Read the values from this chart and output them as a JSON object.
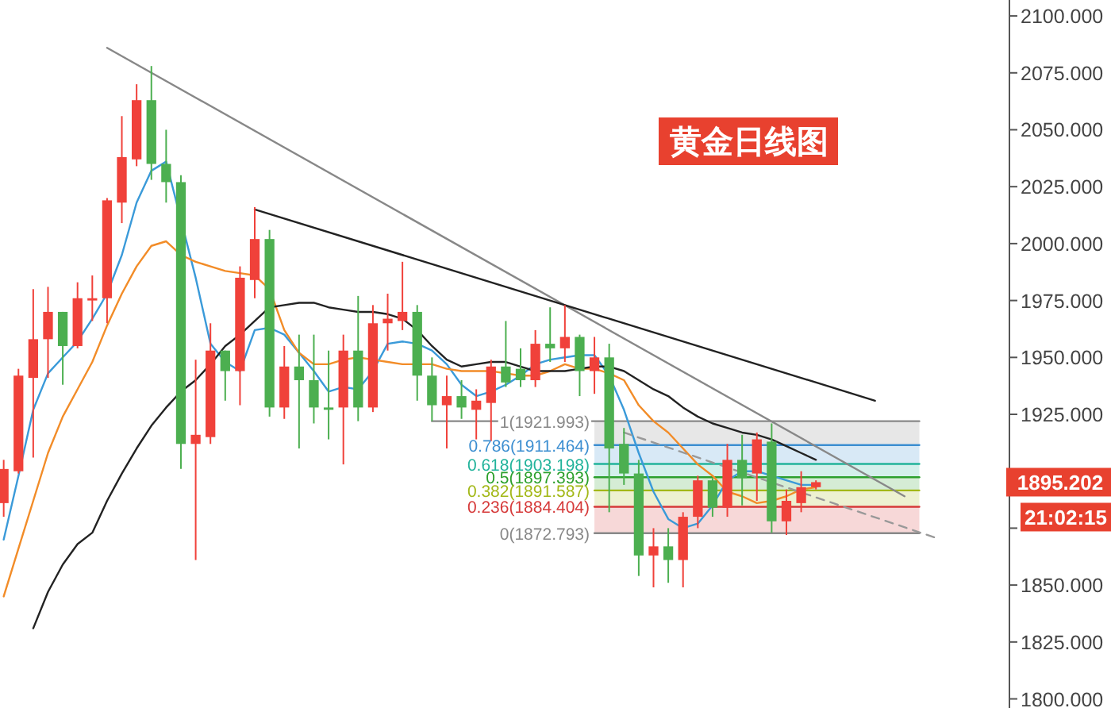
{
  "chart_data": {
    "type": "candlestick",
    "title": "黄金日线图",
    "categories": [
      null,
      null,
      null,
      null,
      null,
      null,
      null,
      null,
      null,
      null,
      null,
      null,
      null,
      null,
      null,
      null,
      null,
      null,
      null,
      null,
      null,
      null,
      null,
      null,
      null,
      null,
      null,
      null,
      null,
      null,
      null,
      null,
      null,
      null,
      null,
      null,
      null,
      null,
      null,
      null,
      null,
      null,
      null,
      null,
      null,
      null,
      null,
      null,
      null,
      null,
      null,
      null,
      null,
      null,
      null,
      null,
      null,
      null,
      null,
      null,
      null,
      null,
      null,
      null,
      null,
      null,
      null,
      null
    ],
    "ohlc": [
      [
        1886,
        1905,
        1880,
        1901
      ],
      [
        1900,
        1945,
        1899,
        1942
      ],
      [
        1941,
        1980,
        1906,
        1958
      ],
      [
        1958,
        1981,
        1941,
        1970
      ],
      [
        1970,
        1970,
        1938,
        1955
      ],
      [
        1955,
        1983,
        1954,
        1976
      ],
      [
        1975,
        1986,
        1966,
        1976
      ],
      [
        1976,
        2020,
        1965,
        2019
      ],
      [
        2018,
        2056,
        2009,
        2038
      ],
      [
        2037,
        2070,
        2034,
        2063
      ],
      [
        2063,
        2078,
        2028,
        2035
      ],
      [
        2035,
        2050,
        2018,
        2027
      ],
      [
        2027,
        2030,
        1901,
        1912
      ],
      [
        1912,
        1949,
        1861,
        1916
      ],
      [
        1915,
        1965,
        1912,
        1953
      ],
      [
        1953,
        1953,
        1931,
        1944
      ],
      [
        1944,
        1990,
        1929,
        1985
      ],
      [
        1984,
        2016,
        1976,
        2002
      ],
      [
        2002,
        2006,
        1924,
        1928
      ],
      [
        1928,
        1955,
        1923,
        1946
      ],
      [
        1946,
        1960,
        1910,
        1940
      ],
      [
        1940,
        1960,
        1921,
        1928
      ],
      [
        1928,
        1953,
        1914,
        1927
      ],
      [
        1928,
        1960,
        1903,
        1953
      ],
      [
        1953,
        1977,
        1922,
        1928
      ],
      [
        1928,
        1973,
        1926,
        1965
      ],
      [
        1965,
        1978,
        1953,
        1967
      ],
      [
        1966,
        1992,
        1962,
        1970
      ],
      [
        1970,
        1973,
        1931,
        1942
      ],
      [
        1942,
        1950,
        1922,
        1929
      ],
      [
        1929,
        1942,
        1910,
        1933
      ],
      [
        1933,
        1940,
        1923,
        1928
      ],
      [
        1927,
        1936,
        1914,
        1931
      ],
      [
        1930,
        1949,
        1912,
        1946
      ],
      [
        1946,
        1966,
        1937,
        1939
      ],
      [
        1945,
        1954,
        1937,
        1940
      ],
      [
        1940,
        1962,
        1937,
        1956
      ],
      [
        1956,
        1972,
        1948,
        1954
      ],
      [
        1954,
        1973,
        1948,
        1959
      ],
      [
        1959,
        1960,
        1933,
        1944
      ],
      [
        1944,
        1959,
        1934,
        1950
      ],
      [
        1950,
        1956,
        1882,
        1910
      ],
      [
        1912,
        1919,
        1894,
        1899
      ],
      [
        1899,
        1905,
        1854,
        1863
      ],
      [
        1863,
        1875,
        1849,
        1867
      ],
      [
        1867,
        1875,
        1851,
        1861
      ],
      [
        1861,
        1882,
        1849,
        1880
      ],
      [
        1880,
        1898,
        1875,
        1896
      ],
      [
        1896,
        1897,
        1880,
        1884
      ],
      [
        1884,
        1912,
        1880,
        1905
      ],
      [
        1905,
        1916,
        1885,
        1897
      ],
      [
        1899,
        1917,
        1887,
        1914
      ],
      [
        1913,
        1921,
        1873,
        1878
      ],
      [
        1878,
        1892,
        1872,
        1887
      ],
      [
        1886,
        1900,
        1882,
        1893
      ],
      [
        1893,
        1896,
        1892,
        1895.202
      ],
      null,
      null,
      null,
      null,
      null,
      null,
      null,
      null,
      null,
      null,
      null,
      null
    ],
    "colors": [
      "#f0413a",
      "#f0413a",
      "#f0413a",
      "#f0413a",
      "#4caf50",
      "#f0413a",
      "#f0413a",
      "#f0413a",
      "#f0413a",
      "#f0413a",
      "#4caf50",
      "#4caf50",
      "#4caf50",
      "#f0413a",
      "#f0413a",
      "#4caf50",
      "#f0413a",
      "#f0413a",
      "#4caf50",
      "#f0413a",
      "#4caf50",
      "#4caf50",
      "#4caf50",
      "#f0413a",
      "#4caf50",
      "#f0413a",
      "#f0413a",
      "#f0413a",
      "#4caf50",
      "#4caf50",
      "#f0413a",
      "#4caf50",
      "#f0413a",
      "#f0413a",
      "#4caf50",
      "#4caf50",
      "#f0413a",
      "#4caf50",
      "#f0413a",
      "#4caf50",
      "#f0413a",
      "#4caf50",
      "#4caf50",
      "#4caf50",
      "#f0413a",
      "#4caf50",
      "#f0413a",
      "#f0413a",
      "#4caf50",
      "#f0413a",
      "#4caf50",
      "#f0413a",
      "#4caf50",
      "#f0413a",
      "#f0413a",
      "#f0413a",
      null,
      null,
      null,
      null,
      null,
      null,
      null,
      null,
      null,
      null,
      null,
      null
    ],
    "ylim": [
      1796,
      2107
    ],
    "yticks": [
      {
        "value": 1800,
        "label": "1800.000"
      },
      {
        "value": 1825,
        "label": "1825.000"
      },
      {
        "value": 1850,
        "label": "1850.000"
      },
      {
        "value": 1875,
        "label": null
      },
      {
        "value": 1900,
        "label": null
      },
      {
        "value": 1925,
        "label": "1925.000"
      },
      {
        "value": 1950,
        "label": "1950.000"
      },
      {
        "value": 1975,
        "label": "1975.000"
      },
      {
        "value": 2000,
        "label": "2000.000"
      },
      {
        "value": 2025,
        "label": "2025.000"
      },
      {
        "value": 2050,
        "label": "2050.000"
      },
      {
        "value": 2075,
        "label": "2075.000"
      },
      {
        "value": 2100,
        "label": "2100.000"
      }
    ],
    "annotations": [
      "1895.202",
      "21:02:15"
    ],
    "bands": [
      {
        "axis": "y",
        "from": 1911.464,
        "to": 1921.993,
        "color": "#888888"
      },
      {
        "axis": "y",
        "from": 1903.198,
        "to": 1911.464,
        "color": "#3d8fd1"
      },
      {
        "axis": "y",
        "from": 1897.393,
        "to": 1903.198,
        "color": "#22b39b"
      },
      {
        "axis": "y",
        "from": 1891.587,
        "to": 1897.393,
        "color": "#2ca02c"
      },
      {
        "axis": "y",
        "from": 1884.404,
        "to": 1891.587,
        "color": "#a3b818"
      },
      {
        "axis": "y",
        "from": 1872.793,
        "to": 1884.404,
        "color": "#d63a3a"
      }
    ],
    "series": [
      {
        "type": "line",
        "name": "1(1921.993)",
        "color": "#888888",
        "values": [
          null,
          null,
          null,
          null,
          null,
          null,
          null,
          null,
          null,
          null,
          null,
          null,
          null,
          null,
          null,
          null,
          null,
          null,
          null,
          null,
          null,
          null,
          null,
          null,
          null,
          null,
          null,
          null,
          null,
          1921.993,
          1921.993,
          1921.993,
          1921.993,
          1921.993,
          1921.993,
          1921.993,
          1921.993,
          1921.993,
          1921.993,
          1921.993,
          1921.993,
          1921.993,
          1921.993,
          1921.993,
          1921.993,
          1921.993,
          1921.993,
          1921.993,
          1921.993,
          1921.993,
          1921.993,
          1921.993,
          1921.993,
          1921.993,
          1921.993,
          1921.993,
          1921.993,
          1921.993,
          1921.993,
          1921.993,
          1921.993,
          1921.993,
          1921.993,
          null,
          null,
          null,
          null,
          null
        ]
      },
      {
        "type": "line",
        "name": "0.786(1911.464)",
        "color": "#3d8fd1",
        "values": [
          null,
          null,
          null,
          null,
          null,
          null,
          null,
          null,
          null,
          null,
          null,
          null,
          null,
          null,
          null,
          null,
          null,
          null,
          null,
          null,
          null,
          null,
          null,
          null,
          null,
          null,
          null,
          null,
          null,
          null,
          null,
          null,
          null,
          null,
          null,
          null,
          null,
          null,
          null,
          null,
          1911.464,
          1911.464,
          1911.464,
          1911.464,
          1911.464,
          1911.464,
          1911.464,
          1911.464,
          1911.464,
          1911.464,
          1911.464,
          1911.464,
          1911.464,
          1911.464,
          1911.464,
          1911.464,
          1911.464,
          1911.464,
          1911.464,
          1911.464,
          1911.464,
          1911.464,
          1911.464,
          null,
          null,
          null,
          null,
          null
        ]
      },
      {
        "type": "line",
        "name": "0.618(1903.198)",
        "color": "#22b39b",
        "values": [
          null,
          null,
          null,
          null,
          null,
          null,
          null,
          null,
          null,
          null,
          null,
          null,
          null,
          null,
          null,
          null,
          null,
          null,
          null,
          null,
          null,
          null,
          null,
          null,
          null,
          null,
          null,
          null,
          null,
          null,
          null,
          null,
          null,
          null,
          null,
          null,
          null,
          null,
          null,
          null,
          1903.198,
          1903.198,
          1903.198,
          1903.198,
          1903.198,
          1903.198,
          1903.198,
          1903.198,
          1903.198,
          1903.198,
          1903.198,
          1903.198,
          1903.198,
          1903.198,
          1903.198,
          1903.198,
          1903.198,
          1903.198,
          1903.198,
          1903.198,
          1903.198,
          1903.198,
          1903.198,
          null,
          null,
          null,
          null,
          null
        ]
      },
      {
        "type": "line",
        "name": "0.5(1897.393)",
        "color": "#2ca02c",
        "values": [
          null,
          null,
          null,
          null,
          null,
          null,
          null,
          null,
          null,
          null,
          null,
          null,
          null,
          null,
          null,
          null,
          null,
          null,
          null,
          null,
          null,
          null,
          null,
          null,
          null,
          null,
          null,
          null,
          null,
          null,
          null,
          null,
          null,
          null,
          null,
          null,
          null,
          null,
          null,
          null,
          1897.393,
          1897.393,
          1897.393,
          1897.393,
          1897.393,
          1897.393,
          1897.393,
          1897.393,
          1897.393,
          1897.393,
          1897.393,
          1897.393,
          1897.393,
          1897.393,
          1897.393,
          1897.393,
          1897.393,
          1897.393,
          1897.393,
          1897.393,
          1897.393,
          1897.393,
          1897.393,
          null,
          null,
          null,
          null,
          null
        ]
      },
      {
        "type": "line",
        "name": "0.382(1891.587)",
        "color": "#a3b818",
        "values": [
          null,
          null,
          null,
          null,
          null,
          null,
          null,
          null,
          null,
          null,
          null,
          null,
          null,
          null,
          null,
          null,
          null,
          null,
          null,
          null,
          null,
          null,
          null,
          null,
          null,
          null,
          null,
          null,
          null,
          null,
          null,
          null,
          null,
          null,
          null,
          null,
          null,
          null,
          null,
          null,
          1891.587,
          1891.587,
          1891.587,
          1891.587,
          1891.587,
          1891.587,
          1891.587,
          1891.587,
          1891.587,
          1891.587,
          1891.587,
          1891.587,
          1891.587,
          1891.587,
          1891.587,
          1891.587,
          1891.587,
          1891.587,
          1891.587,
          1891.587,
          1891.587,
          1891.587,
          1891.587,
          null,
          null,
          null,
          null,
          null
        ]
      },
      {
        "type": "line",
        "name": "0.236(1884.404)",
        "color": "#d63a3a",
        "values": [
          null,
          null,
          null,
          null,
          null,
          null,
          null,
          null,
          null,
          null,
          null,
          null,
          null,
          null,
          null,
          null,
          null,
          null,
          null,
          null,
          null,
          null,
          null,
          null,
          null,
          null,
          null,
          null,
          null,
          null,
          null,
          null,
          null,
          null,
          null,
          null,
          null,
          null,
          null,
          null,
          1884.404,
          1884.404,
          1884.404,
          1884.404,
          1884.404,
          1884.404,
          1884.404,
          1884.404,
          1884.404,
          1884.404,
          1884.404,
          1884.404,
          1884.404,
          1884.404,
          1884.404,
          1884.404,
          1884.404,
          1884.404,
          1884.404,
          1884.404,
          1884.404,
          1884.404,
          1884.404,
          null,
          null,
          null,
          null,
          null
        ]
      },
      {
        "type": "line",
        "name": "0(1872.793)",
        "color": "#888888",
        "values": [
          null,
          null,
          null,
          null,
          null,
          null,
          null,
          null,
          null,
          null,
          null,
          null,
          null,
          null,
          null,
          null,
          null,
          null,
          null,
          null,
          null,
          null,
          null,
          null,
          null,
          null,
          null,
          null,
          null,
          null,
          null,
          null,
          null,
          null,
          null,
          null,
          null,
          null,
          null,
          null,
          1872.793,
          1872.793,
          1872.793,
          1872.793,
          1872.793,
          1872.793,
          1872.793,
          1872.793,
          1872.793,
          1872.793,
          1872.793,
          1872.793,
          1872.793,
          1872.793,
          1872.793,
          1872.793,
          1872.793,
          1872.793,
          1872.793,
          1872.793,
          1872.793,
          1872.793,
          1872.793,
          null,
          null,
          null,
          null,
          null
        ]
      },
      {
        "type": "line",
        "color": "#3a9ad9",
        "values": [
          1870,
          1898,
          1927,
          1943,
          1950,
          1957,
          1967,
          1978,
          1995,
          2018,
          2032,
          2036,
          null,
          1985,
          1956,
          1948,
          1944,
          1962,
          1963,
          1960,
          1952,
          1944,
          1935,
          1937,
          1936,
          1944,
          1956,
          1957,
          1956,
          1953,
          1947,
          1938,
          1933,
          1935,
          1938,
          1942,
          1947,
          1949,
          1950,
          1951,
          1951,
          1942,
          1927,
          1908,
          1891,
          1879,
          1875,
          1877,
          1885,
          1896,
          1900,
          1900,
          1898,
          1896,
          1894,
          1894,
          null,
          null,
          null,
          null,
          null,
          null,
          null,
          null,
          null,
          null,
          null,
          null
        ]
      },
      {
        "type": "line",
        "color": "#f28c28",
        "values": [
          1845,
          1866,
          1887,
          1908,
          1924,
          1936,
          1948,
          1964,
          1978,
          1990,
          1999,
          2001,
          1995,
          1992,
          1990,
          1988,
          1987,
          1986,
          1980,
          1962,
          1952,
          1947,
          1947,
          1949,
          1950,
          1949,
          1948,
          1947,
          1947,
          1947,
          1945,
          1944,
          1944,
          1944,
          1943,
          1942,
          1942,
          1944,
          1947,
          1945,
          1945,
          1943,
          1940,
          1929,
          1922,
          1917,
          1910,
          1903,
          1898,
          1891,
          1889,
          1886,
          1887,
          1889,
          1892,
          1893,
          null,
          null,
          null,
          null,
          null,
          null,
          null,
          null,
          null,
          null,
          null,
          null
        ]
      },
      {
        "type": "line",
        "color": "#222222",
        "values": [
          null,
          null,
          1831,
          1847,
          1859,
          1868,
          1873,
          1887,
          1899,
          1910,
          1920,
          1928,
          1935,
          1940,
          1947,
          1955,
          1960,
          1966,
          1972,
          1973,
          1974,
          1974,
          1972,
          1971,
          1970,
          1970,
          1969,
          1967,
          1962,
          1955,
          1949,
          1946,
          1947,
          1948,
          1948,
          1946,
          1944,
          1944,
          1944,
          1945,
          1946,
          1946,
          1944,
          1940,
          1936,
          1933,
          1928,
          1924,
          1921,
          1919,
          1917,
          1916,
          1914,
          1911,
          1908,
          1905,
          null,
          null,
          null,
          null,
          null,
          null,
          null,
          null,
          null,
          null,
          null,
          null
        ]
      },
      {
        "type": "line",
        "color": "#888888",
        "values": [
          null,
          null,
          null,
          null,
          null,
          null,
          null,
          2086,
          null,
          null,
          null,
          null,
          null,
          null,
          null,
          null,
          null,
          null,
          null,
          null,
          null,
          null,
          null,
          null,
          null,
          null,
          null,
          null,
          null,
          null,
          null,
          null,
          null,
          null,
          null,
          null,
          null,
          null,
          null,
          null,
          null,
          null,
          null,
          null,
          null,
          null,
          null,
          null,
          null,
          null,
          null,
          null,
          null,
          null,
          null,
          null,
          null,
          null,
          null,
          null,
          null,
          1889,
          null,
          null,
          null,
          null,
          null,
          null
        ]
      },
      {
        "type": "line",
        "color": "#222222",
        "values": [
          null,
          null,
          null,
          null,
          null,
          null,
          null,
          null,
          null,
          null,
          null,
          null,
          null,
          null,
          null,
          null,
          null,
          2015,
          null,
          null,
          null,
          null,
          null,
          null,
          null,
          null,
          null,
          null,
          null,
          null,
          null,
          null,
          null,
          null,
          null,
          null,
          null,
          null,
          null,
          null,
          null,
          null,
          null,
          null,
          null,
          null,
          null,
          null,
          null,
          null,
          null,
          null,
          null,
          null,
          null,
          null,
          null,
          null,
          null,
          1931,
          null,
          null,
          null,
          null,
          null,
          null,
          null,
          null
        ]
      },
      {
        "type": "line",
        "color": "#999999",
        "line_style": "dashed",
        "values": [
          null,
          null,
          null,
          null,
          null,
          null,
          null,
          null,
          null,
          null,
          null,
          null,
          null,
          null,
          null,
          null,
          null,
          null,
          null,
          null,
          null,
          null,
          null,
          null,
          null,
          null,
          null,
          null,
          null,
          null,
          null,
          null,
          null,
          null,
          null,
          null,
          null,
          null,
          null,
          null,
          null,
          null,
          1917,
          null,
          null,
          null,
          null,
          null,
          null,
          null,
          null,
          null,
          null,
          null,
          null,
          null,
          null,
          null,
          null,
          null,
          null,
          null,
          null,
          1871,
          null,
          null,
          null,
          null
        ]
      }
    ]
  }
}
